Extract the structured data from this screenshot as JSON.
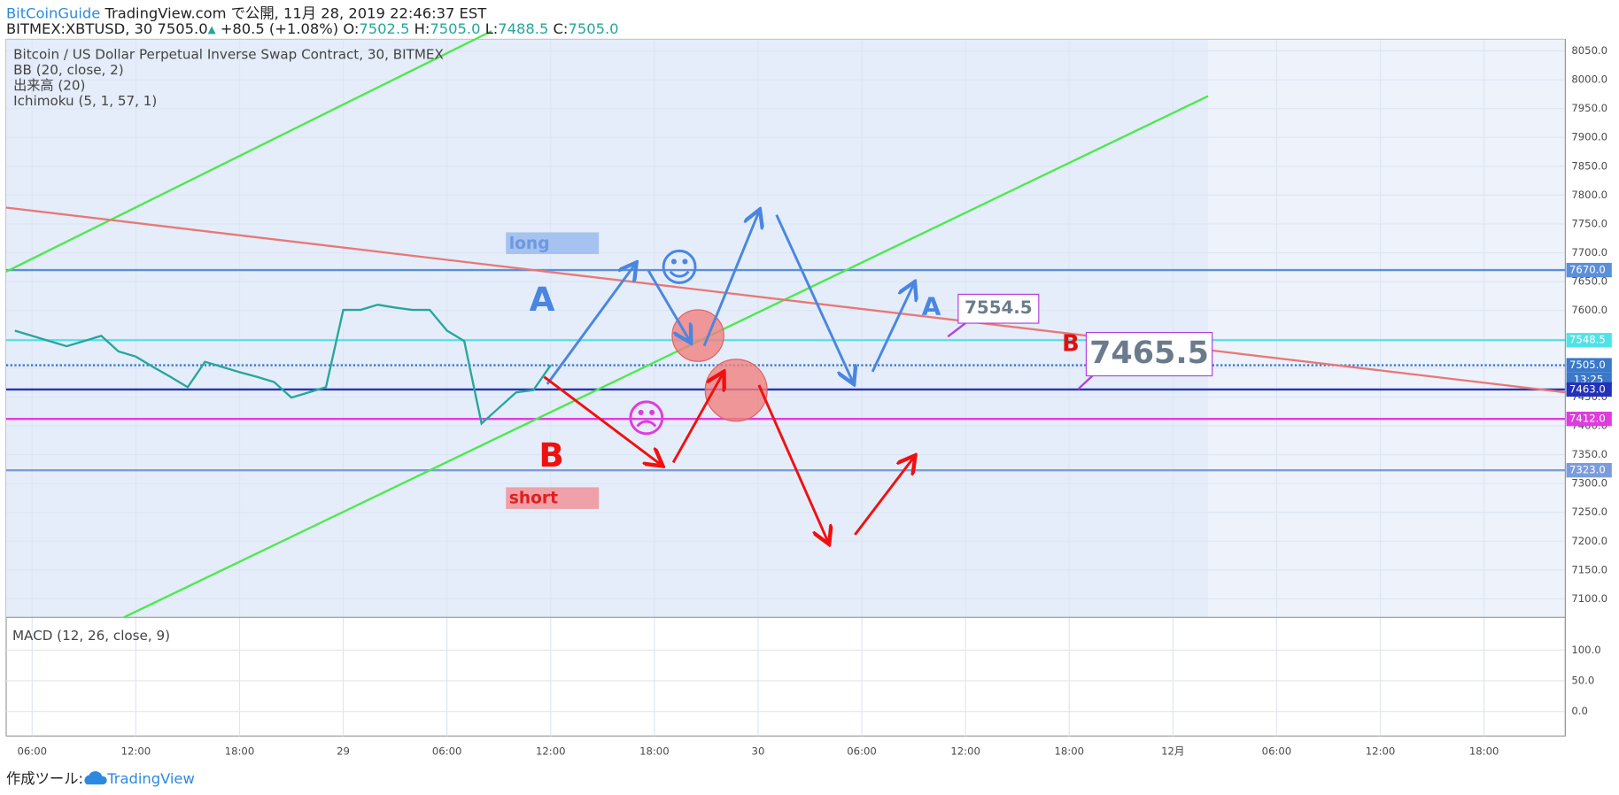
{
  "header": {
    "author": "BitCoinGuide",
    "published": "TradingView.com で公開, 11月 28, 2019 22:46:37 EST",
    "symbol": "BITMEX:XBTUSD, 30",
    "last": "7505.0",
    "arrow": "▲",
    "change": "+80.5 (+1.08%)",
    "quotes": [
      {
        "label": "O:",
        "value": "7502.5"
      },
      {
        "label": "H:",
        "value": "7505.0"
      },
      {
        "label": "L:",
        "value": "7488.5"
      },
      {
        "label": "C:",
        "value": "7505.0"
      }
    ]
  },
  "legend": [
    "Bitcoin / US Dollar Perpetual Inverse Swap Contract, 30, BITMEX",
    "BB (20, close, 2)",
    "出来高 (20)",
    "Ichimoku (5, 1, 57, 1)"
  ],
  "annotations": {
    "long": "long",
    "short": "short",
    "a1": "A",
    "b1": "B",
    "a2": "A",
    "b2": "B",
    "callout1": "7554.5",
    "callout2": "7465.5",
    "happy": "☺",
    "sad": "☹",
    "countdown": "13:25"
  },
  "footer": {
    "label": "作成ツール:",
    "brand": "TradingView"
  },
  "chart_data": {
    "type": "line",
    "x": [
      5,
      6,
      7,
      8,
      9,
      10,
      11,
      12,
      13,
      14,
      15,
      16,
      17,
      18,
      19,
      20,
      21,
      22,
      23,
      24,
      25,
      26,
      27,
      28,
      29,
      30,
      31,
      32,
      33,
      34,
      35,
      36
    ],
    "series": [
      {
        "color": "#26a69a",
        "values": [
          7565,
          7556,
          7547,
          7538,
          7547,
          7556,
          7529,
          7520,
          7502,
          7485,
          7467,
          7511,
          7502,
          7493,
          7485,
          7476,
          7449,
          7458,
          7467,
          7601,
          7601,
          7610,
          7605,
          7601,
          7601,
          7565,
          7547,
          7404,
          7431,
          7458,
          7462,
          7505
        ]
      }
    ],
    "xlim": [
      4.5,
      94.7
    ],
    "xticks": [
      {
        "value": 6,
        "label": "06:00"
      },
      {
        "value": 12,
        "label": "12:00"
      },
      {
        "value": 18,
        "label": "18:00"
      },
      {
        "value": 24,
        "label": "29"
      },
      {
        "value": 30,
        "label": "06:00"
      },
      {
        "value": 36,
        "label": "12:00"
      },
      {
        "value": 42,
        "label": "18:00"
      },
      {
        "value": 48,
        "label": "30"
      },
      {
        "value": 54,
        "label": "06:00"
      },
      {
        "value": 60,
        "label": "12:00"
      },
      {
        "value": 66,
        "label": "18:00"
      },
      {
        "value": 72,
        "label": "12月"
      },
      {
        "value": 78,
        "label": "06:00"
      },
      {
        "value": 84,
        "label": "12:00"
      },
      {
        "value": 90,
        "label": "18:00"
      }
    ],
    "ylim": [
      7068,
      8070
    ],
    "yticks": [
      {
        "value": 7100,
        "label": "7100.0"
      },
      {
        "value": 7150,
        "label": "7150.0"
      },
      {
        "value": 7200,
        "label": "7200.0"
      },
      {
        "value": 7250,
        "label": "7250.0"
      },
      {
        "value": 7300,
        "label": "7300.0"
      },
      {
        "value": 7350,
        "label": "7350.0"
      },
      {
        "value": 7400,
        "label": "7400.0"
      },
      {
        "value": 7450,
        "label": "7450.0"
      },
      {
        "value": 7500,
        "label": "7500.0"
      },
      {
        "value": 7550,
        "label": "7550.0"
      },
      {
        "value": 7600,
        "label": "7600.0"
      },
      {
        "value": 7650,
        "label": "7650.0"
      },
      {
        "value": 7700,
        "label": "7700.0"
      },
      {
        "value": 7750,
        "label": "7750.0"
      },
      {
        "value": 7800,
        "label": "7800.0"
      },
      {
        "value": 7850,
        "label": "7850.0"
      },
      {
        "value": 7900,
        "label": "7900.0"
      },
      {
        "value": 7950,
        "label": "7950.0"
      },
      {
        "value": 8000,
        "label": "8000.0"
      },
      {
        "value": 8050,
        "label": "8050.0"
      }
    ],
    "levels": [
      {
        "value": 7670,
        "label": "7670.0",
        "color": "#5b8fdb"
      },
      {
        "value": 7548.5,
        "label": "7548.5",
        "color": "#4fe3e8"
      },
      {
        "value": 7505,
        "label": "7505.0",
        "color": "#3a78c9"
      },
      {
        "value": 7463,
        "label": "7463.0",
        "color": "#2432b8"
      },
      {
        "value": 7412,
        "label": "7412.0",
        "color": "#e03be0"
      },
      {
        "value": 7323,
        "label": "7323.0",
        "color": "#7b9cdc"
      }
    ],
    "grid": true,
    "macd": {
      "title": "MACD (12, 26, close, 9)",
      "ylim": [
        -40,
        150
      ],
      "yticks": [
        {
          "value": 100,
          "label": "100.0"
        },
        {
          "value": 50,
          "label": "50.0"
        },
        {
          "value": 0,
          "label": "0.0"
        }
      ]
    }
  }
}
